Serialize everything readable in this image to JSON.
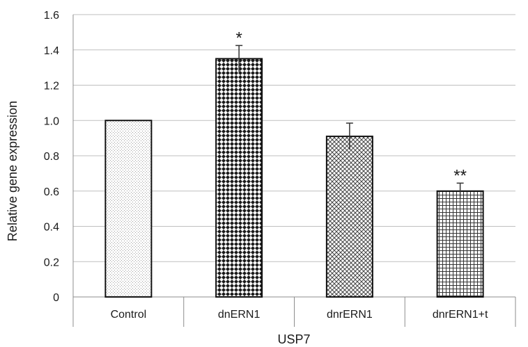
{
  "chart_data": {
    "type": "bar",
    "xlabel": "USP7",
    "ylabel": "Relative gene expression",
    "ylim": [
      0,
      1.6
    ],
    "yticks": [
      "0",
      "0.2",
      "0.4",
      "0.6",
      "0.8",
      "1.0",
      "1.2",
      "1.4",
      "1.6"
    ],
    "categories": [
      "Control",
      "dnERN1",
      "dnrERN1",
      "dnrERN1+t"
    ],
    "values": [
      1.0,
      1.35,
      0.91,
      0.6
    ],
    "errors": [
      0.0,
      0.075,
      0.075,
      0.045
    ],
    "significance": [
      "",
      "*",
      "",
      "**"
    ],
    "patterns": [
      "fine-dots",
      "diamond-checker",
      "crosshatch",
      "grid"
    ],
    "grid": true,
    "colors": {
      "bar_stroke": "#111111",
      "grid": "#bfbfbf",
      "axis": "#8c8c8c"
    }
  }
}
